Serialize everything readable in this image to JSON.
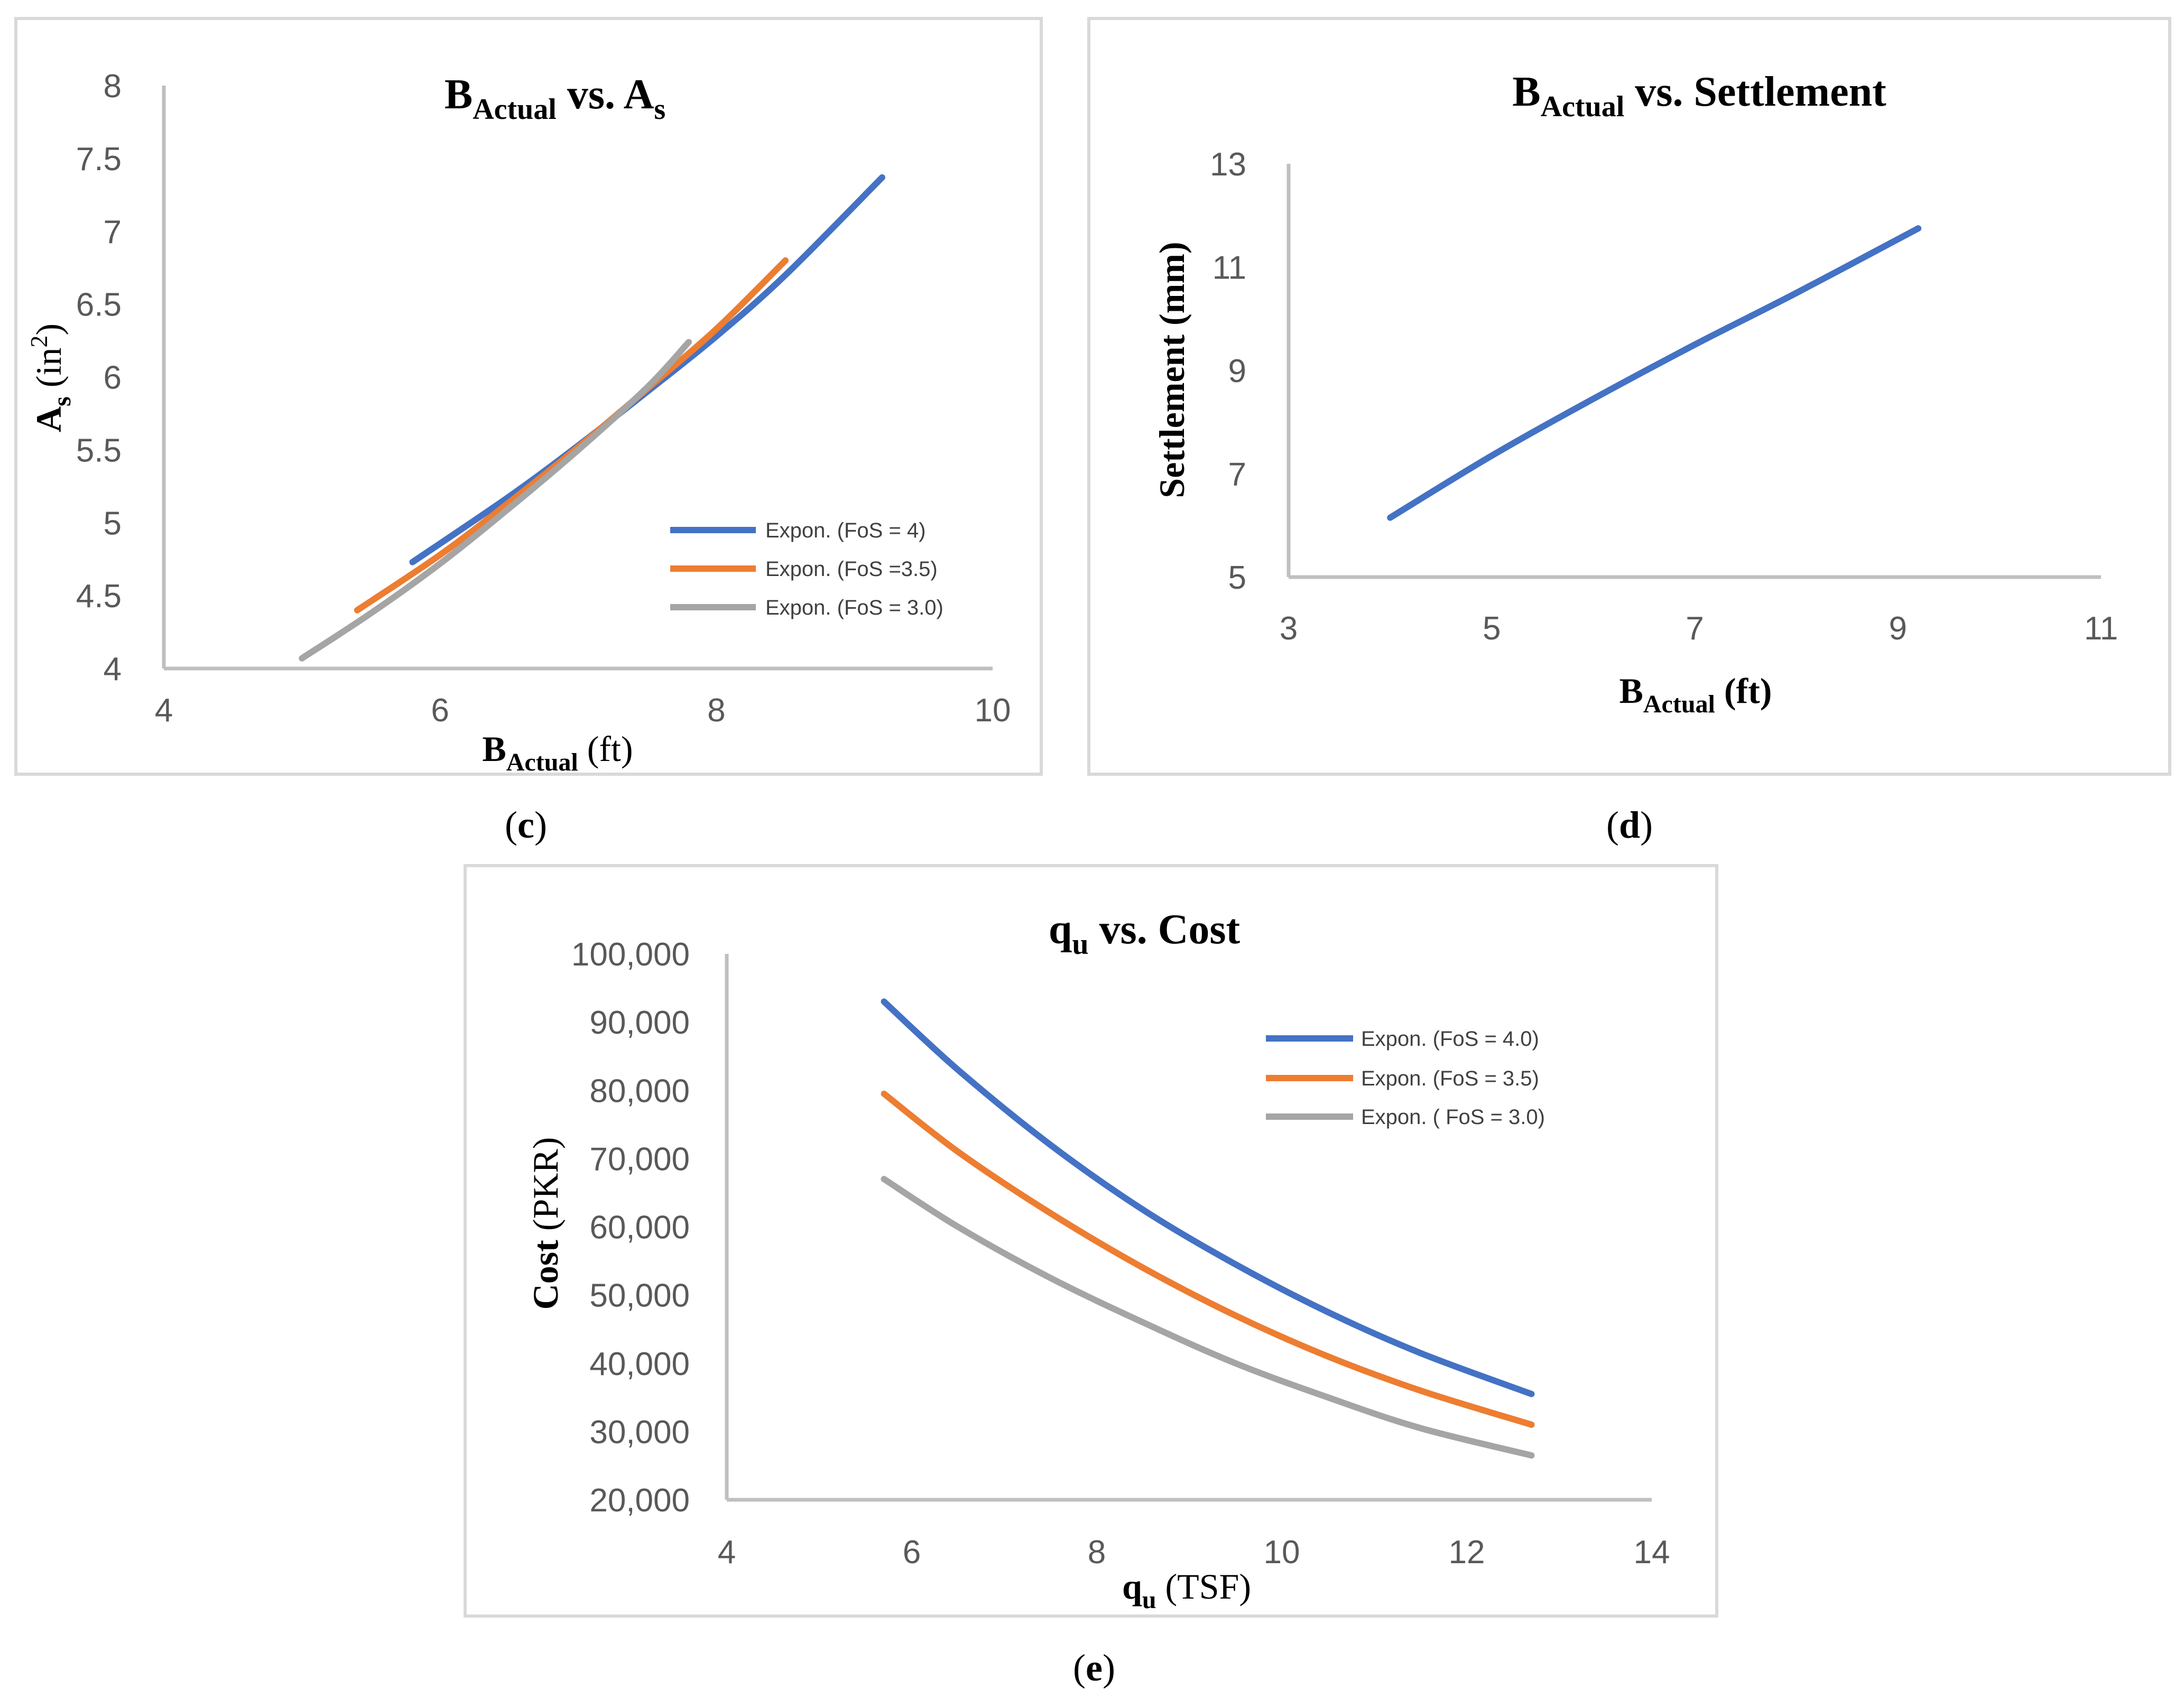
{
  "colors": {
    "blue": "#4472C4",
    "orange": "#ED7D31",
    "gray": "#A5A5A5"
  },
  "chart_data": [
    {
      "id": "c",
      "type": "line",
      "caption": "c",
      "title": {
        "main": "B",
        "sub": "Actual",
        "mid": " vs. A",
        "sub2": "s"
      },
      "xlabel": {
        "main": "B",
        "sub": "Actual",
        "unit": " (ft)"
      },
      "ylabel": {
        "main": "A",
        "sub": "s",
        "unit": " (in",
        "sup": "2",
        "close": ")"
      },
      "xlim": [
        4,
        10
      ],
      "ylim": [
        4,
        8
      ],
      "xticks": [
        "4",
        "6",
        "8",
        "10"
      ],
      "yticks": [
        "4",
        "4.5",
        "5",
        "5.5",
        "6",
        "6.5",
        "7",
        "7.5",
        "8"
      ],
      "legend_position": "right",
      "series": [
        {
          "name": "Expon. (FoS = 4)",
          "color": "#4472C4",
          "x": [
            5.8,
            6.5,
            7.0,
            7.5,
            8.0,
            8.5,
            9.2
          ],
          "y": [
            4.73,
            5.18,
            5.53,
            5.9,
            6.28,
            6.7,
            7.37
          ]
        },
        {
          "name": "Expon. (FoS =3.5)",
          "color": "#ED7D31",
          "x": [
            5.4,
            6.0,
            6.5,
            7.0,
            7.5,
            8.0,
            8.5
          ],
          "y": [
            4.4,
            4.78,
            5.14,
            5.52,
            5.92,
            6.33,
            6.8
          ]
        },
        {
          "name": "Expon. (FoS = 3.0)",
          "color": "#A5A5A5",
          "x": [
            5.0,
            5.5,
            6.0,
            6.5,
            7.0,
            7.5,
            7.8
          ],
          "y": [
            4.07,
            4.38,
            4.72,
            5.1,
            5.5,
            5.93,
            6.24
          ]
        }
      ]
    },
    {
      "id": "d",
      "type": "line",
      "caption": "d",
      "title": {
        "main": "B",
        "sub": "Actual",
        "mid": " vs. Settlement"
      },
      "xlabel": {
        "main": "B",
        "sub": "Actual",
        "unit": " (ft)"
      },
      "ylabel": {
        "main": "Settlement (mm)"
      },
      "xlim": [
        3,
        11
      ],
      "ylim": [
        5,
        13
      ],
      "xticks": [
        "3",
        "5",
        "7",
        "9",
        "11"
      ],
      "yticks": [
        "5",
        "7",
        "9",
        "11",
        "13"
      ],
      "series": [
        {
          "name": "Settlement",
          "color": "#4472C4",
          "x": [
            4.0,
            5.0,
            6.0,
            7.0,
            8.0,
            9.2
          ],
          "y": [
            6.15,
            7.35,
            8.45,
            9.5,
            10.5,
            11.75
          ]
        }
      ]
    },
    {
      "id": "e",
      "type": "line",
      "caption": "e",
      "title": {
        "main": "q",
        "sub": "u",
        "mid": " vs. Cost"
      },
      "xlabel": {
        "main": "q",
        "sub": "u",
        "unit": " (TSF)"
      },
      "ylabel": {
        "main": "Cost",
        "unit": " (PKR)"
      },
      "xlim": [
        4,
        14
      ],
      "ylim": [
        20000,
        100000
      ],
      "xticks": [
        "4",
        "6",
        "8",
        "10",
        "12",
        "14"
      ],
      "yticks": [
        "20,000",
        "30,000",
        "40,000",
        "50,000",
        "60,000",
        "70,000",
        "80,000",
        "90,000",
        "100,000"
      ],
      "legend_position": "top-right",
      "series": [
        {
          "name": "Expon. (FoS = 4.0)",
          "color": "#4472C4",
          "x": [
            5.7,
            6.5,
            7.5,
            8.5,
            9.5,
            10.5,
            11.5,
            12.7
          ],
          "y": [
            93000,
            83000,
            72000,
            62500,
            54500,
            47500,
            41500,
            35500
          ]
        },
        {
          "name": "Expon. (FoS = 3.5)",
          "color": "#ED7D31",
          "x": [
            5.7,
            6.5,
            7.5,
            8.5,
            9.5,
            10.5,
            11.5,
            12.7
          ],
          "y": [
            79500,
            71000,
            62000,
            54000,
            47000,
            41000,
            36000,
            31000
          ]
        },
        {
          "name": "Expon. ( FoS = 3.0)",
          "color": "#A5A5A5",
          "x": [
            5.7,
            6.5,
            7.5,
            8.5,
            9.5,
            10.5,
            11.5,
            12.7
          ],
          "y": [
            67000,
            60000,
            52500,
            46000,
            40000,
            35000,
            30500,
            26500
          ]
        }
      ]
    }
  ]
}
